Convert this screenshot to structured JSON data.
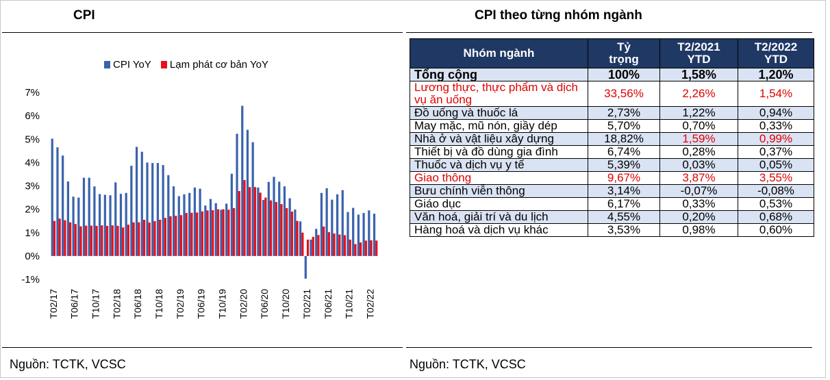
{
  "left_title": "CPI",
  "right_title": "CPI theo từng nhóm ngành",
  "source_left": "Nguồn: TCTK, VCSC",
  "source_right": "Nguồn: TCTK, VCSC",
  "colors": {
    "cpi": "#3a63ad",
    "core": "#e8101a",
    "header_bg": "#1f3864",
    "shade": "#dae3f3",
    "highlight": "#e00000"
  },
  "chart_data": {
    "type": "bar",
    "ylim": [
      -1,
      7
    ],
    "yticks": [
      -1,
      0,
      1,
      2,
      3,
      4,
      5,
      6,
      7
    ],
    "ytick_labels": [
      "-1%",
      "0%",
      "1%",
      "2%",
      "3%",
      "4%",
      "5%",
      "6%",
      "7%"
    ],
    "xtick_labels": [
      "T02/17",
      "T06/17",
      "T10/17",
      "T02/18",
      "T06/18",
      "T10/18",
      "T02/19",
      "T06/19",
      "T10/19",
      "T02/20",
      "T06/20",
      "T10/20",
      "T02/21",
      "T06/21",
      "T10/21",
      "T02/22"
    ],
    "xtick_every": 4,
    "grid": false,
    "legend_position": "top",
    "series": [
      {
        "name": "CPI YoY",
        "values": [
          5.02,
          4.65,
          4.3,
          3.19,
          2.54,
          2.5,
          3.35,
          3.35,
          2.98,
          2.65,
          2.62,
          2.6,
          3.15,
          2.66,
          2.7,
          3.86,
          4.67,
          4.46,
          4.0,
          3.98,
          3.98,
          3.89,
          3.46,
          2.98,
          2.56,
          2.64,
          2.7,
          2.93,
          2.88,
          2.16,
          2.44,
          2.26,
          1.98,
          2.24,
          3.52,
          5.23,
          6.43,
          5.4,
          4.87,
          2.93,
          2.4,
          3.17,
          3.39,
          3.18,
          2.98,
          2.47,
          1.99,
          1.48,
          -0.97,
          0.7,
          1.16,
          2.7,
          2.9,
          2.41,
          2.64,
          2.82,
          1.88,
          2.06,
          1.77,
          1.84,
          1.95,
          1.81
        ]
      },
      {
        "name": "Lạm phát cơ bản YoY",
        "values": [
          1.5,
          1.6,
          1.53,
          1.44,
          1.37,
          1.27,
          1.3,
          1.3,
          1.29,
          1.31,
          1.29,
          1.31,
          1.29,
          1.22,
          1.34,
          1.44,
          1.44,
          1.55,
          1.43,
          1.49,
          1.55,
          1.63,
          1.7,
          1.72,
          1.75,
          1.84,
          1.85,
          1.86,
          1.91,
          1.95,
          1.96,
          2.0,
          2.0,
          1.98,
          2.05,
          2.78,
          3.25,
          2.95,
          2.95,
          2.71,
          2.5,
          2.38,
          2.31,
          2.22,
          2.05,
          1.9,
          1.5,
          1.0,
          0.7,
          0.82,
          0.9,
          1.26,
          1.02,
          0.96,
          0.92,
          0.89,
          0.7,
          0.51,
          0.58,
          0.66,
          0.67,
          0.66
        ]
      }
    ]
  },
  "table": {
    "headers": [
      {
        "lines": [
          "Nhóm ngành"
        ]
      },
      {
        "lines": [
          "Tỷ",
          "trọng"
        ]
      },
      {
        "lines": [
          "T2/2021",
          "YTD"
        ]
      },
      {
        "lines": [
          "T2/2022",
          "YTD"
        ]
      }
    ],
    "rows": [
      {
        "name": "Tổng cộng",
        "weight": "100%",
        "ytd2021": "1,58%",
        "ytd2022": "1,20%",
        "total": true,
        "shaded": true
      },
      {
        "name": "Lương thực, thực phẩm và dịch vụ ăn uống",
        "weight": "33,56%",
        "ytd2021": "2,26%",
        "ytd2022": "1,54%",
        "red": [
          0,
          1,
          2,
          3
        ]
      },
      {
        "name": "Đồ uống và thuốc lá",
        "weight": "2,73%",
        "ytd2021": "1,22%",
        "ytd2022": "0,94%",
        "shaded": true
      },
      {
        "name": "May mặc, mũ nón, giầy dép",
        "weight": "5,70%",
        "ytd2021": "0,70%",
        "ytd2022": "0,33%"
      },
      {
        "name": "Nhà ở và vật liệu xây dựng",
        "weight": "18,82%",
        "ytd2021": "1,59%",
        "ytd2022": "0,99%",
        "shaded": true,
        "red": [
          2,
          3
        ]
      },
      {
        "name": "Thiết bị và đồ dùng gia đình",
        "weight": "6,74%",
        "ytd2021": "0,28%",
        "ytd2022": "0,37%"
      },
      {
        "name": "Thuốc và dịch vụ y tế",
        "weight": "5,39%",
        "ytd2021": "0,03%",
        "ytd2022": "0,05%",
        "shaded": true
      },
      {
        "name": "Giao thông",
        "weight": "9,67%",
        "ytd2021": "3,87%",
        "ytd2022": "3,55%",
        "red": [
          0,
          1,
          2,
          3
        ]
      },
      {
        "name": "Bưu chính viễn thông",
        "weight": "3,14%",
        "ytd2021": "-0,07%",
        "ytd2022": "-0,08%",
        "shaded": true
      },
      {
        "name": "Giáo dục",
        "weight": "6,17%",
        "ytd2021": "0,33%",
        "ytd2022": "0,53%"
      },
      {
        "name": "Văn hoá, giải trí và du lịch",
        "weight": "4,55%",
        "ytd2021": "0,20%",
        "ytd2022": "0,68%",
        "shaded": true
      },
      {
        "name": "Hàng hoá và dịch vụ khác",
        "weight": "3,53%",
        "ytd2021": "0,98%",
        "ytd2022": "0,60%"
      }
    ]
  }
}
